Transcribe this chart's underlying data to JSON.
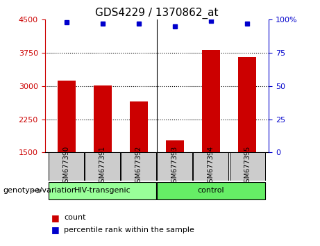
{
  "title": "GDS4229 / 1370862_at",
  "samples": [
    "GSM677390",
    "GSM677391",
    "GSM677392",
    "GSM677393",
    "GSM677394",
    "GSM677395"
  ],
  "counts": [
    3130,
    3020,
    2650,
    1780,
    3820,
    3660
  ],
  "percentiles": [
    98,
    97,
    97,
    95,
    99,
    97
  ],
  "ymin": 1500,
  "ymax": 4500,
  "yticks_left": [
    1500,
    2250,
    3000,
    3750,
    4500
  ],
  "y2min": 0,
  "y2max": 100,
  "yticks_right": [
    0,
    25,
    50,
    75,
    100
  ],
  "bar_color": "#cc0000",
  "dot_color": "#0000cc",
  "groups": [
    {
      "label": "HIV-transgenic",
      "start": 0,
      "end": 2,
      "color": "#99ff99"
    },
    {
      "label": "control",
      "start": 3,
      "end": 5,
      "color": "#66ee66"
    }
  ],
  "group_label_text": "genotype/variation",
  "legend_count_text": "count",
  "legend_percentile_text": "percentile rank within the sample",
  "title_fontsize": 11,
  "tick_fontsize": 8,
  "sample_box_color": "#cccccc",
  "sample_label_fontsize": 7,
  "group_label_fontsize": 8,
  "legend_fontsize": 8
}
